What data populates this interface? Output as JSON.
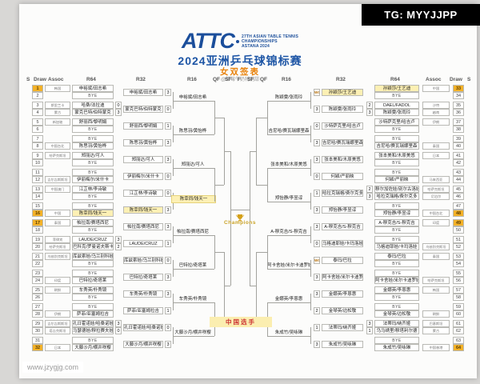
{
  "watermark_tg": "TG: MYYJJPP",
  "watermark_site": "www.jzygjg.com",
  "header": {
    "logo_acronym": "ATTC",
    "logo_lines": [
      "27TH ASIAN TABLE TENNIS",
      "CHAMPIONSHIPS",
      "ASTANA 2024"
    ],
    "title": "2024亚洲乒乓球锦标赛",
    "subtitle": "女双签表",
    "credit": "@草莓牛奶特别甜"
  },
  "columns": {
    "left": [
      "S",
      "Draw",
      "Assoc",
      "R64",
      "R32",
      "R16",
      "QF",
      "SF"
    ],
    "final": "F",
    "right": [
      "SF",
      "QF",
      "R16",
      "R32",
      "R64",
      "Assoc",
      "Draw",
      "S"
    ]
  },
  "center": {
    "champion_label": "Champions",
    "trophy_icon": "trophy-icon",
    "legend_china": "中国选手"
  },
  "colors": {
    "title_blue": "#1d55a5",
    "subtitle_orange": "#e8820c",
    "seed_bg": "#f3b229",
    "china_highlight": "#fdf0b4",
    "legend_red": "#cc3333",
    "champion_gold": "#c9a227"
  },
  "bracket": {
    "left": {
      "slots": [
        {
          "draw": 1,
          "seed": true,
          "assoc": "韩国",
          "name": "申裕斌/田志希"
        },
        {
          "draw": 2,
          "bye": true
        },
        {
          "draw": 3,
          "assoc": "斯里兰卡",
          "name": "哈桑/法拉迪",
          "score": "0"
        },
        {
          "draw": 4,
          "assoc": "蒙古",
          "name": "蒙克巴特/伯特蒙克",
          "score": "3"
        },
        {
          "draw": 5,
          "assoc": "新加坡",
          "name": "舒丽西/黎明娟"
        },
        {
          "draw": 6,
          "bye": true
        },
        {
          "draw": 7,
          "bye": true
        },
        {
          "draw": 8,
          "assoc": "中国台北",
          "name": "陈思羽/黄怡桦"
        },
        {
          "draw": 9,
          "assoc": "哈萨克斯坦",
          "name": "郑丽达/可人"
        },
        {
          "draw": 10,
          "bye": true
        },
        {
          "draw": 11,
          "bye": true
        },
        {
          "draw": 12,
          "assoc": "吉尔吉斯斯坦",
          "name": "伊丽梅尔/米什卡"
        },
        {
          "draw": 13,
          "assoc": "中国澳门",
          "name": "江芷林/李诗敏"
        },
        {
          "draw": 14,
          "bye": true
        },
        {
          "draw": 15,
          "bye": true
        },
        {
          "draw": 16,
          "seed": true,
          "highlight": true,
          "assoc": "中国",
          "name": "陈幸同/钱天一"
        },
        {
          "draw": 17,
          "seed": true,
          "assoc": "泰国",
          "name": "帕拉南/赛塔西尼"
        },
        {
          "draw": 18,
          "bye": true
        },
        {
          "draw": 19,
          "assoc": "菲律宾",
          "name": "LAUDE/CRUZ",
          "score": "3"
        },
        {
          "draw": 20,
          "assoc": "哈萨克斯坦",
          "name": "巴科克/罗曼诺夫斯卡娅",
          "score": "2"
        },
        {
          "draw": 21,
          "assoc": "乌兹别克斯坦",
          "name": "库兹索娃/乌兰别科娃"
        },
        {
          "draw": 22,
          "bye": true
        },
        {
          "draw": 23,
          "bye": true
        },
        {
          "draw": 24,
          "assoc": "印度",
          "name": "巴特拉/奇塔莱"
        },
        {
          "draw": 25,
          "assoc": "朝鲜",
          "name": "车秀英/朴秀镜"
        },
        {
          "draw": 26,
          "bye": true
        },
        {
          "draw": 27,
          "bye": true
        },
        {
          "draw": 28,
          "assoc": "伊朗",
          "name": "萨菲/亚塞姆拉吉"
        },
        {
          "draw": 29,
          "assoc": "吉尔吉斯斯坦",
          "name": "孔日霍诺娃/哈桑诺娃",
          "score": "3"
        },
        {
          "draw": 30,
          "assoc": "塔吉克斯坦",
          "name": "马瑟德娃/穆拉赛夫娃",
          "score": "0"
        },
        {
          "draw": 31,
          "bye": true
        },
        {
          "draw": 32,
          "seed": true,
          "assoc": "日本",
          "name": "大藤沙月/横井咲樱"
        }
      ],
      "r32": [
        {
          "name": "申裕斌/田志希",
          "score": "3"
        },
        {
          "name": "蒙克巴特/伯特蒙克",
          "score": "0"
        },
        {
          "name": "舒丽西/黎明娟",
          "score": "1"
        },
        {
          "name": "陈思羽/黄怡桦",
          "score": "3"
        },
        {
          "name": "郑丽达/可人",
          "score": "3"
        },
        {
          "name": "伊丽梅尔/米什卡",
          "score": "0"
        },
        {
          "name": "江芷林/李诗敏",
          "score": "0"
        },
        {
          "name": "陈幸同/钱天一",
          "score": "3",
          "highlight": true
        },
        {
          "name": "帕拉南/赛塔西尼",
          "score": "3"
        },
        {
          "name": "LAUDE/CRUZ",
          "score": "1"
        },
        {
          "name": "库兹索娃/乌兰别科娃",
          "score": "0"
        },
        {
          "name": "巴特拉/奇塔莱",
          "score": "3"
        },
        {
          "name": "车秀英/朴秀镜",
          "score": "3"
        },
        {
          "name": "萨菲/亚塞姆拉吉",
          "score": "1"
        },
        {
          "name": "孔日霍诺娃/哈桑诺娃",
          "score": "0"
        },
        {
          "name": "大藤沙月/横井咲樱",
          "score": "3"
        }
      ],
      "r16": [
        {
          "name": "申裕斌/田志希"
        },
        {
          "name": "陈思羽/黄怡桦"
        },
        {
          "name": "郑丽达/可人"
        },
        {
          "name": "陈幸同/钱天一",
          "highlight": true
        },
        {
          "name": "帕拉南/赛塔西尼"
        },
        {
          "name": "巴特拉/奇塔莱"
        },
        {
          "name": "车秀英/朴秀镜"
        },
        {
          "name": "大藤沙月/横井咲樱"
        }
      ]
    },
    "right": {
      "slots": [
        {
          "draw": 33,
          "seed": true,
          "highlight": true,
          "assoc": "中国",
          "name": "孙颖莎/王艺迪"
        },
        {
          "draw": 34,
          "bye": true
        },
        {
          "draw": 35,
          "assoc": "沙特",
          "name": "DAEL/FADOL",
          "score": "2"
        },
        {
          "draw": 36,
          "assoc": "越南",
          "name": "陈颖雯/张雨玲",
          "score": "3"
        },
        {
          "draw": 37,
          "assoc": "伊朗",
          "name": "沙特萨克里/哈吉卢"
        },
        {
          "draw": 38,
          "bye": true
        },
        {
          "draw": 39,
          "bye": true
        },
        {
          "draw": 40,
          "assoc": "泰国",
          "name": "吉尼哈/赛瓦瑞娜里森"
        },
        {
          "draw": 41,
          "assoc": "日本",
          "name": "张本美和/木原美悠"
        },
        {
          "draw": 42,
          "bye": true
        },
        {
          "draw": 43,
          "bye": true
        },
        {
          "draw": 44,
          "assoc": "马来西亚",
          "name": "何颖/严丽映"
        },
        {
          "draw": 45,
          "assoc": "哈萨克斯坦",
          "name": "穆尔加佐娃/别尔古洛娃",
          "score": "2"
        },
        {
          "draw": 46,
          "assoc": "尼泊尔",
          "name": "哈拉克瑞格/费尔克多",
          "score": "3"
        },
        {
          "draw": 47,
          "bye": true
        },
        {
          "draw": 48,
          "seed": true,
          "assoc": "中国台北",
          "name": "郑怡静/李昱谆"
        },
        {
          "draw": 49,
          "seed": true,
          "assoc": "印度",
          "name": "A-穆克吉/S-穆克吉"
        },
        {
          "draw": 50,
          "bye": true
        },
        {
          "draw": 51,
          "bye": true
        },
        {
          "draw": 52,
          "assoc": "乌兹别克斯坦",
          "name": "马格迪耶娃/卡玛洛娃"
        },
        {
          "draw": 53,
          "assoc": "泰国",
          "name": "泰玛/巴拉"
        },
        {
          "draw": 54,
          "bye": true
        },
        {
          "draw": 55,
          "bye": true
        },
        {
          "draw": 56,
          "assoc": "哈萨克斯坦",
          "name": "阿卡舍娃/米尔卡迪罗娃"
        },
        {
          "draw": 57,
          "assoc": "韩国",
          "name": "金娜英/李恩惠"
        },
        {
          "draw": 58,
          "bye": true
        },
        {
          "draw": 59,
          "bye": true
        },
        {
          "draw": 60,
          "assoc": "朝鲜",
          "name": "金琴英/边松敬"
        },
        {
          "draw": 61,
          "assoc": "巴基斯坦",
          "name": "法蒂玛/纳齐娅",
          "score": "3"
        },
        {
          "draw": 62,
          "assoc": "蒙古",
          "name": "乌马绣里/穆塔利尔德",
          "score": "1"
        },
        {
          "draw": 63,
          "bye": true
        },
        {
          "draw": 64,
          "seed": true,
          "assoc": "中国香港",
          "name": "朱成竹/吴咏琳"
        }
      ],
      "r32": [
        {
          "name": "孙颖莎/王艺迪",
          "score": "WO",
          "highlight": true
        },
        {
          "name": "陈颖雯/张雨玲",
          "score": "3"
        },
        {
          "name": "沙特萨克里/哈吉卢",
          "score": "0"
        },
        {
          "name": "吉尼哈/赛瓦瑞娜里森",
          "score": "3"
        },
        {
          "name": "张本美和/木原美悠",
          "score": "3"
        },
        {
          "name": "何颖/严丽映",
          "score": "0"
        },
        {
          "name": "哈拉克瑞格/费尔克多",
          "score": "1"
        },
        {
          "name": "郑怡静/李昱谆",
          "score": "3"
        },
        {
          "name": "A-穆克吉/S-穆克吉",
          "score": "3"
        },
        {
          "name": "马格迪耶娃/卡玛洛娃",
          "score": "0"
        },
        {
          "name": "泰玛/巴拉",
          "score": "WO"
        },
        {
          "name": "阿卡舍娃/米尔卡迪罗娃",
          "score": "3"
        },
        {
          "name": "金娜英/李恩惠",
          "score": "3"
        },
        {
          "name": "金琴英/边松敬",
          "score": "2"
        },
        {
          "name": "法蒂玛/纳齐娅",
          "score": "1"
        },
        {
          "name": "朱成竹/吴咏琳",
          "score": "3"
        }
      ],
      "r16": [
        {
          "name": "陈颖雯/张雨玲"
        },
        {
          "name": "吉尼哈/赛瓦瑞娜里森"
        },
        {
          "name": "张本美和/木原美悠"
        },
        {
          "name": "郑怡静/李昱谆"
        },
        {
          "name": "A-穆克吉/S-穆克吉"
        },
        {
          "name": "阿卡舍娃/米尔卡迪罗娃"
        },
        {
          "name": "金娜英/李恩惠"
        },
        {
          "name": "朱成竹/吴咏琳"
        }
      ]
    }
  }
}
